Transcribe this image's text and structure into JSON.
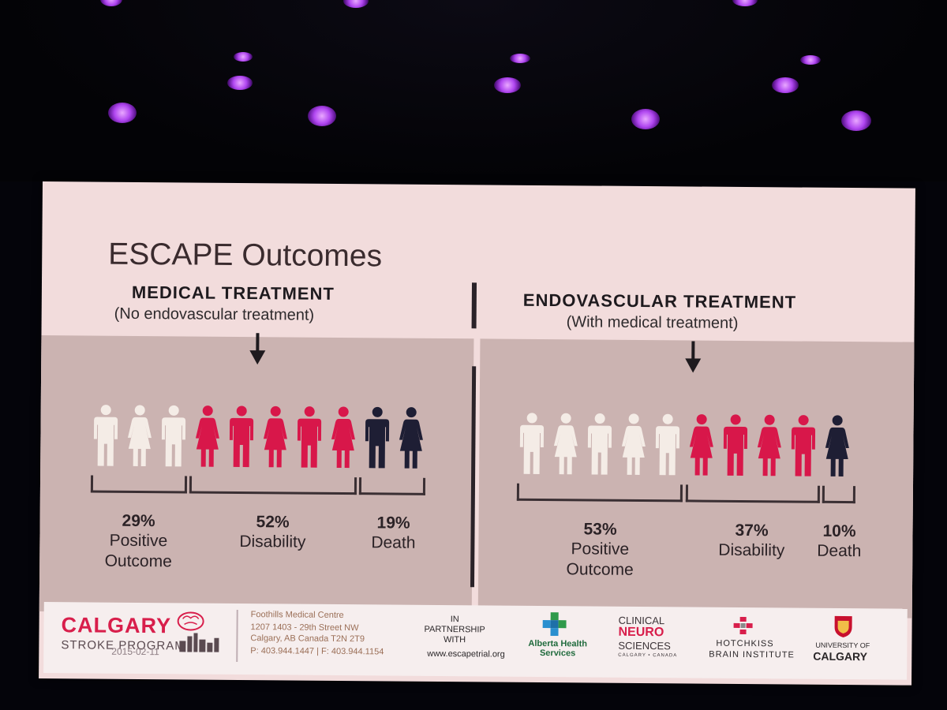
{
  "slide": {
    "title": "ESCAPE Outcomes",
    "medical": {
      "heading": "MEDICAL TREATMENT",
      "subheading": "(No endovascular treatment)",
      "stats": [
        {
          "pct": "29%",
          "label1": "Positive",
          "label2": "Outcome"
        },
        {
          "pct": "52%",
          "label1": "Disability",
          "label2": ""
        },
        {
          "pct": "19%",
          "label1": "Death",
          "label2": ""
        }
      ],
      "figures": [
        {
          "type": "male",
          "outcome": "positive"
        },
        {
          "type": "female",
          "outcome": "positive"
        },
        {
          "type": "male",
          "outcome": "positive"
        },
        {
          "type": "female",
          "outcome": "disability"
        },
        {
          "type": "male",
          "outcome": "disability"
        },
        {
          "type": "female",
          "outcome": "disability"
        },
        {
          "type": "male",
          "outcome": "disability"
        },
        {
          "type": "female",
          "outcome": "disability"
        },
        {
          "type": "male",
          "outcome": "death"
        },
        {
          "type": "female",
          "outcome": "death"
        }
      ]
    },
    "endovascular": {
      "heading": "ENDOVASCULAR TREATMENT",
      "subheading": "(With medical treatment)",
      "stats": [
        {
          "pct": "53%",
          "label1": "Positive",
          "label2": "Outcome"
        },
        {
          "pct": "37%",
          "label1": "Disability",
          "label2": ""
        },
        {
          "pct": "10%",
          "label1": "Death",
          "label2": ""
        }
      ],
      "figures": [
        {
          "type": "male",
          "outcome": "positive"
        },
        {
          "type": "female",
          "outcome": "positive"
        },
        {
          "type": "male",
          "outcome": "positive"
        },
        {
          "type": "female",
          "outcome": "positive"
        },
        {
          "type": "male",
          "outcome": "positive"
        },
        {
          "type": "female",
          "outcome": "disability"
        },
        {
          "type": "male",
          "outcome": "disability"
        },
        {
          "type": "female",
          "outcome": "disability"
        },
        {
          "type": "male",
          "outcome": "disability"
        },
        {
          "type": "female",
          "outcome": "death"
        }
      ]
    },
    "colors": {
      "positive": "#f4ece6",
      "disability": "#d8174a",
      "death": "#1e1e34"
    }
  },
  "footer": {
    "calgary": "CALGARY",
    "stroke_program": "STROKE PROGRAM",
    "date": "2015-02-11",
    "address": [
      "Foothills Medical Centre",
      "1207 1403 - 29th Street NW",
      "Calgary, AB Canada T2N 2T9",
      "P: 403.944.1447 | F: 403.944.1154"
    ],
    "partnership": [
      "IN",
      "PARTNERSHIP",
      "WITH"
    ],
    "url": "www.escapetrial.org",
    "ahs": [
      "Alberta Health",
      "Services"
    ],
    "cns": {
      "line1": "CLINICAL",
      "line2": "NEURO",
      "line3": "SCIENCES",
      "line4": "CALGARY • CANADA"
    },
    "hbi": {
      "line1": "HOTCHKISS",
      "line2": "BRAIN INSTITUTE"
    },
    "uc": {
      "line1": "UNIVERSITY OF",
      "line2": "CALGARY"
    }
  }
}
